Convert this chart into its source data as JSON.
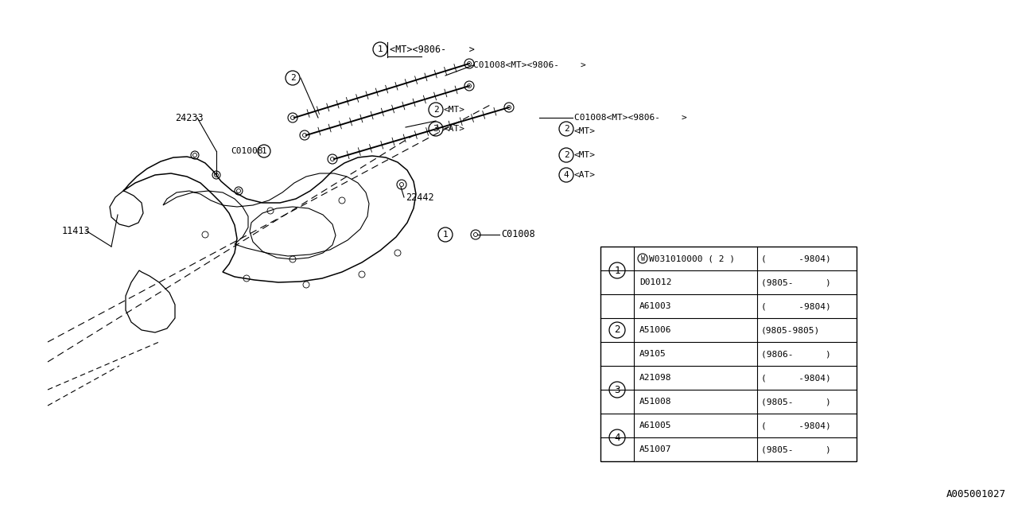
{
  "bg_color": "#ffffff",
  "line_color": "#000000",
  "diagram_code": "A005001027",
  "table_rows": [
    {
      "ref": "1",
      "part": "W031010000 ( 2 )",
      "date": "(      -9804)",
      "w_circle": true,
      "ref_show": true
    },
    {
      "ref": "1",
      "part": "D01012",
      "date": "(9805-      )",
      "w_circle": false,
      "ref_show": false
    },
    {
      "ref": "2",
      "part": "A61003",
      "date": "(      -9804)",
      "w_circle": false,
      "ref_show": false
    },
    {
      "ref": "2",
      "part": "A51006",
      "date": "(9805-9805)",
      "w_circle": false,
      "ref_show": true
    },
    {
      "ref": "2",
      "part": "A9105",
      "date": "(9806-      )",
      "w_circle": false,
      "ref_show": false
    },
    {
      "ref": "3",
      "part": "A21098",
      "date": "(      -9804)",
      "w_circle": false,
      "ref_show": true
    },
    {
      "ref": "3",
      "part": "A51008",
      "date": "(9805-      )",
      "w_circle": false,
      "ref_show": false
    },
    {
      "ref": "4",
      "part": "A61005",
      "date": "(      -9804)",
      "w_circle": false,
      "ref_show": true
    },
    {
      "ref": "4",
      "part": "A51007",
      "date": "(9805-      )",
      "w_circle": false,
      "ref_show": false
    }
  ]
}
